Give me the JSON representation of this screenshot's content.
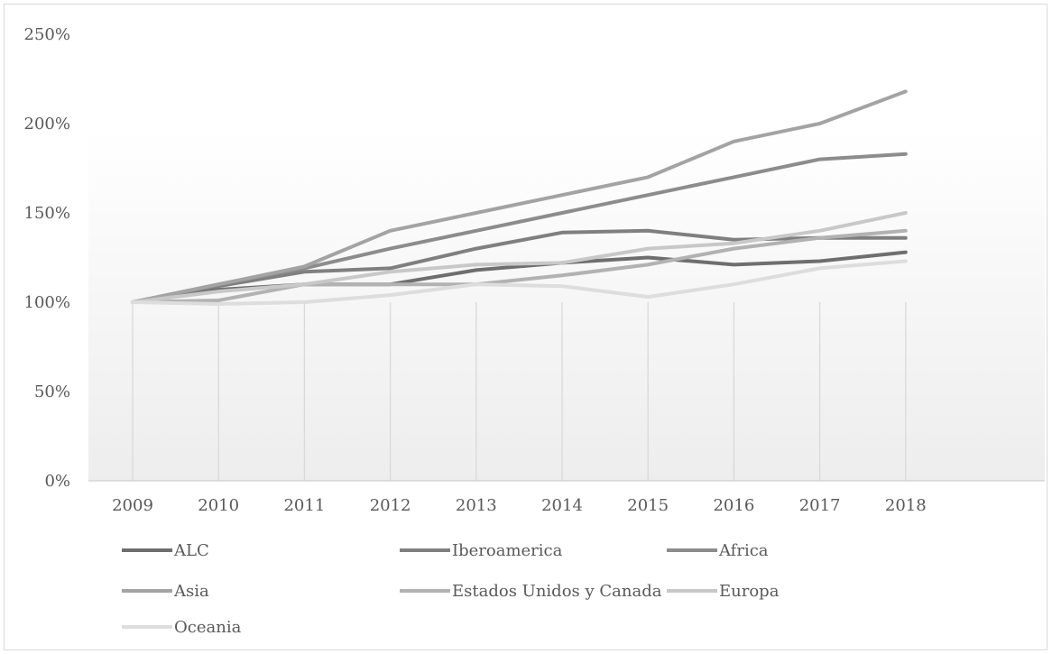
{
  "chart_data": {
    "type": "line",
    "title": "",
    "xlabel": "",
    "ylabel": "",
    "categories": [
      "2009",
      "2010",
      "2011",
      "2012",
      "2013",
      "2014",
      "2015",
      "2016",
      "2017",
      "2018"
    ],
    "y_tick_labels": [
      "0%",
      "50%",
      "100%",
      "150%",
      "200%",
      "250%"
    ],
    "ylim": [
      0,
      250
    ],
    "y_unit": "%",
    "grid": "vertical",
    "legend_position": "bottom",
    "series": [
      {
        "name": "ALC",
        "color": "#6e6e6e",
        "values": [
          100,
          107,
          110,
          110,
          118,
          122,
          125,
          121,
          123,
          128
        ]
      },
      {
        "name": "Iberoamerica",
        "color": "#7f7f7f",
        "values": [
          100,
          109,
          117,
          119,
          130,
          139,
          140,
          135,
          136,
          136
        ]
      },
      {
        "name": "Africa",
        "color": "#8c8c8c",
        "values": [
          100,
          110,
          119,
          130,
          140,
          150,
          160,
          170,
          180,
          183
        ]
      },
      {
        "name": "Asia",
        "color": "#a3a3a3",
        "values": [
          100,
          110,
          120,
          140,
          150,
          160,
          170,
          190,
          200,
          218
        ]
      },
      {
        "name": "Estados Unidos y Canada",
        "color": "#b2b2b2",
        "values": [
          100,
          101,
          110,
          110,
          110,
          115,
          121,
          130,
          136,
          140
        ]
      },
      {
        "name": "Europa",
        "color": "#c8c8c8",
        "values": [
          100,
          106,
          110,
          117,
          121,
          122,
          130,
          133,
          140,
          150
        ]
      },
      {
        "name": "Oceania",
        "color": "#dddddd",
        "values": [
          100,
          99,
          100,
          104,
          110,
          109,
          103,
          110,
          119,
          123
        ]
      }
    ]
  }
}
